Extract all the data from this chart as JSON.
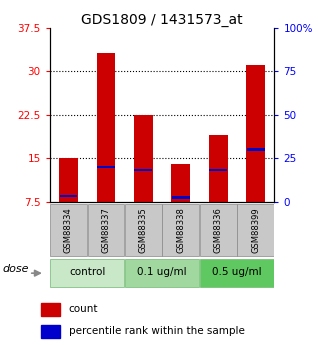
{
  "title": "GDS1809 / 1431573_at",
  "samples": [
    "GSM88334",
    "GSM88337",
    "GSM88335",
    "GSM88338",
    "GSM88336",
    "GSM88399"
  ],
  "red_values": [
    15.0,
    33.2,
    22.5,
    14.0,
    19.0,
    31.0
  ],
  "blue_values": [
    8.5,
    13.5,
    13.0,
    8.2,
    13.0,
    16.5
  ],
  "ylim_left": [
    7.5,
    37.5
  ],
  "ylim_right": [
    0,
    100
  ],
  "yticks_left": [
    7.5,
    15.0,
    22.5,
    30.0,
    37.5
  ],
  "yticks_right": [
    0,
    25,
    50,
    75,
    100
  ],
  "ytick_labels_left": [
    "7.5",
    "15",
    "22.5",
    "30",
    "37.5"
  ],
  "ytick_labels_right": [
    "0",
    "25",
    "50",
    "75",
    "100%"
  ],
  "groups": [
    {
      "label": "control",
      "indices": [
        0,
        1
      ],
      "color": "#c8e8c8"
    },
    {
      "label": "0.1 ug/ml",
      "indices": [
        2,
        3
      ],
      "color": "#a0d8a0"
    },
    {
      "label": "0.5 ug/ml",
      "indices": [
        4,
        5
      ],
      "color": "#60c860"
    }
  ],
  "bar_width": 0.5,
  "red_color": "#cc0000",
  "blue_color": "#0000cc",
  "dose_label": "dose",
  "legend_red": "count",
  "legend_blue": "percentile rank within the sample",
  "title_fontsize": 10,
  "tick_fontsize": 7.5,
  "sample_fontsize": 6.0,
  "group_fontsize": 7.5,
  "legend_fontsize": 7.5
}
